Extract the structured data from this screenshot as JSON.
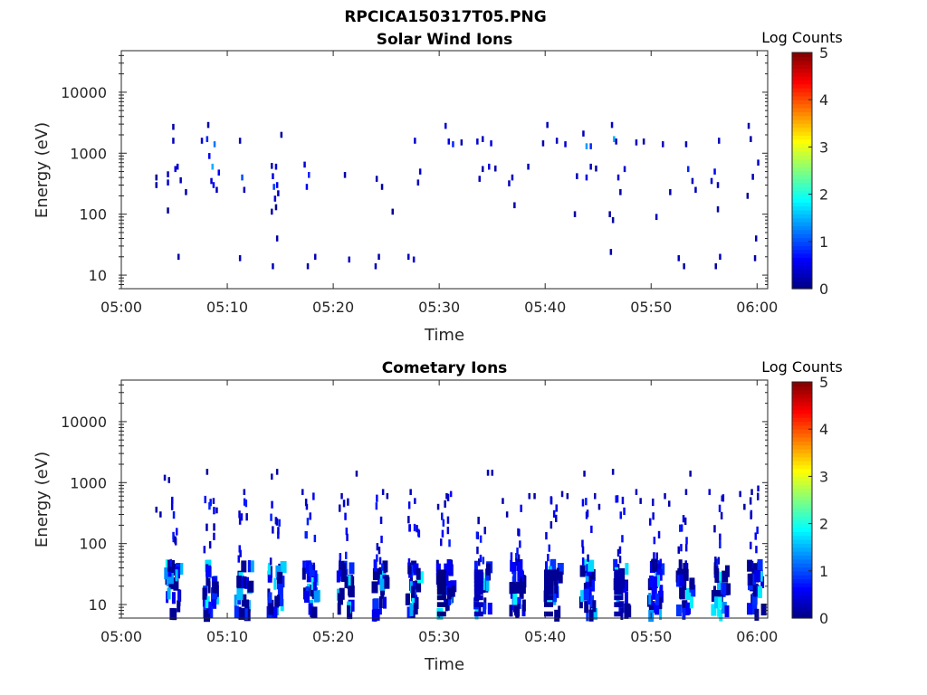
{
  "figure_title": "RPCICA150317T05.PNG",
  "colors": {
    "colormap": [
      "#00007f",
      "#0000ff",
      "#007fff",
      "#00ffff",
      "#7fff7f",
      "#ffff00",
      "#ff7f00",
      "#ff0000",
      "#7f0000"
    ],
    "axis": "#262626"
  },
  "chart_data": [
    {
      "type": "heatmap",
      "title": "Solar Wind Ions",
      "xlabel": "Time",
      "ylabel": "Energy (eV)",
      "x_unit": "minutes after 05:00",
      "xlim": [
        0,
        61
      ],
      "ylim": [
        6,
        48000
      ],
      "y_scale": "log",
      "x_ticks": [
        {
          "value": 0,
          "label": "05:00"
        },
        {
          "value": 10,
          "label": "05:10"
        },
        {
          "value": 20,
          "label": "05:20"
        },
        {
          "value": 30,
          "label": "05:30"
        },
        {
          "value": 40,
          "label": "05:40"
        },
        {
          "value": 50,
          "label": "05:50"
        },
        {
          "value": 60,
          "label": "06:00"
        }
      ],
      "y_ticks": [
        {
          "value": 10,
          "label": "10"
        },
        {
          "value": 100,
          "label": "100"
        },
        {
          "value": 1000,
          "label": "1000"
        },
        {
          "value": 10000,
          "label": "10000"
        }
      ],
      "colorbar": {
        "label": "Log Counts",
        "range": [
          0,
          5
        ],
        "ticks": [
          "0",
          "1",
          "2",
          "3",
          "4",
          "5"
        ]
      },
      "cells": [
        [
          3.2,
          300,
          0.2
        ],
        [
          3.2,
          400,
          0.1
        ],
        [
          4.3,
          450,
          0.3
        ],
        [
          4.3,
          330,
          0.4
        ],
        [
          4.3,
          115,
          0.1
        ],
        [
          4.8,
          2700,
          0.2
        ],
        [
          4.8,
          1600,
          0.3
        ],
        [
          5.0,
          550,
          0.5
        ],
        [
          5.2,
          600,
          0.3
        ],
        [
          5.3,
          20,
          0.2
        ],
        [
          5.5,
          360,
          0.3
        ],
        [
          6.0,
          230,
          0.2
        ],
        [
          7.5,
          1600,
          0.4
        ],
        [
          8.0,
          1700,
          0.8
        ],
        [
          8.1,
          2900,
          0.2
        ],
        [
          8.2,
          900,
          0.6
        ],
        [
          8.4,
          350,
          0.4
        ],
        [
          8.5,
          600,
          1.5
        ],
        [
          8.6,
          300,
          0.6
        ],
        [
          8.7,
          1400,
          1.2
        ],
        [
          8.9,
          250,
          0.3
        ],
        [
          9.1,
          480,
          0.6
        ],
        [
          11.1,
          1600,
          0.3
        ],
        [
          11.3,
          400,
          1.0
        ],
        [
          11.5,
          250,
          0.3
        ],
        [
          11.1,
          19,
          0.3
        ],
        [
          14.1,
          620,
          0.3
        ],
        [
          14.2,
          420,
          0.5
        ],
        [
          14.3,
          280,
          0.9
        ],
        [
          14.4,
          180,
          0.4
        ],
        [
          14.5,
          600,
          0.4
        ],
        [
          14.6,
          300,
          0.6
        ],
        [
          14.7,
          220,
          0.3
        ],
        [
          14.5,
          130,
          0.1
        ],
        [
          14.1,
          110,
          0.2
        ],
        [
          14.2,
          14,
          0.3
        ],
        [
          14.6,
          40,
          0.2
        ],
        [
          15.0,
          2000,
          0.1
        ],
        [
          17.2,
          650,
          0.4
        ],
        [
          17.4,
          280,
          0.6
        ],
        [
          17.6,
          440,
          0.8
        ],
        [
          18.2,
          20,
          0.3
        ],
        [
          17.5,
          14,
          0.2
        ],
        [
          21.0,
          440,
          0.2
        ],
        [
          21.4,
          18,
          0.3
        ],
        [
          24.0,
          380,
          0.2
        ],
        [
          24.5,
          280,
          0.2
        ],
        [
          25.5,
          110,
          0.1
        ],
        [
          23.9,
          14,
          0.3
        ],
        [
          24.2,
          20,
          0.2
        ],
        [
          27.0,
          20,
          0.3
        ],
        [
          27.5,
          18,
          0.4
        ],
        [
          27.6,
          1600,
          0.4
        ],
        [
          27.9,
          330,
          0.3
        ],
        [
          28.1,
          500,
          0.4
        ],
        [
          30.5,
          2800,
          0.4
        ],
        [
          30.8,
          1550,
          0.5
        ],
        [
          31.2,
          1400,
          0.8
        ],
        [
          32.0,
          1500,
          0.2
        ],
        [
          33.5,
          1550,
          0.4
        ],
        [
          34.0,
          1700,
          0.3
        ],
        [
          34.8,
          1450,
          0.5
        ],
        [
          34.0,
          550,
          0.2
        ],
        [
          34.6,
          600,
          0.5
        ],
        [
          33.7,
          380,
          0.3
        ],
        [
          35.2,
          560,
          0.2
        ],
        [
          36.5,
          320,
          0.3
        ],
        [
          36.8,
          400,
          0.3
        ],
        [
          37.0,
          140,
          0.2
        ],
        [
          38.3,
          600,
          0.3
        ],
        [
          39.7,
          1450,
          0.2
        ],
        [
          40.1,
          2900,
          0.3
        ],
        [
          41.0,
          1600,
          0.3
        ],
        [
          41.8,
          1400,
          0.4
        ],
        [
          42.7,
          100,
          0.2
        ],
        [
          42.9,
          420,
          0.3
        ],
        [
          43.5,
          2100,
          0.3
        ],
        [
          43.8,
          1300,
          1.4
        ],
        [
          44.2,
          1300,
          0.8
        ],
        [
          43.8,
          400,
          0.5
        ],
        [
          44.2,
          600,
          0.3
        ],
        [
          44.7,
          560,
          0.2
        ],
        [
          46.2,
          2900,
          0.4
        ],
        [
          46.4,
          1700,
          1.5
        ],
        [
          46.6,
          1550,
          0.3
        ],
        [
          46.8,
          400,
          0.4
        ],
        [
          47.0,
          230,
          0.2
        ],
        [
          47.4,
          550,
          0.4
        ],
        [
          46.0,
          100,
          0.2
        ],
        [
          46.3,
          80,
          0.2
        ],
        [
          46.1,
          24,
          0.2
        ],
        [
          48.5,
          1500,
          0.3
        ],
        [
          49.2,
          1550,
          0.2
        ],
        [
          51.0,
          1400,
          0.3
        ],
        [
          50.4,
          90,
          0.3
        ],
        [
          51.7,
          230,
          0.2
        ],
        [
          52.5,
          19,
          0.3
        ],
        [
          53.0,
          14,
          0.2
        ],
        [
          53.2,
          1400,
          0.3
        ],
        [
          53.4,
          550,
          0.8
        ],
        [
          53.8,
          350,
          0.3
        ],
        [
          54.1,
          250,
          0.3
        ],
        [
          55.6,
          350,
          0.4
        ],
        [
          55.9,
          500,
          0.6
        ],
        [
          56.2,
          300,
          0.3
        ],
        [
          56.3,
          1600,
          0.3
        ],
        [
          56.2,
          120,
          0.2
        ],
        [
          56.0,
          14,
          0.2
        ],
        [
          56.4,
          20,
          0.3
        ],
        [
          59.1,
          2800,
          0.2
        ],
        [
          59.3,
          1700,
          0.2
        ],
        [
          59.5,
          410,
          0.3
        ],
        [
          59.7,
          19,
          0.2
        ],
        [
          59.8,
          40,
          0.2
        ],
        [
          60.0,
          700,
          0.4
        ],
        [
          59.0,
          200,
          0.1
        ]
      ]
    },
    {
      "type": "heatmap",
      "title": "Cometary Ions",
      "xlabel": "Time",
      "ylabel": "Energy (eV)",
      "x_unit": "minutes after 05:00",
      "xlim": [
        0,
        61
      ],
      "ylim": [
        6,
        48000
      ],
      "y_scale": "log",
      "x_ticks": [
        {
          "value": 0,
          "label": "05:00"
        },
        {
          "value": 10,
          "label": "05:10"
        },
        {
          "value": 20,
          "label": "05:20"
        },
        {
          "value": 30,
          "label": "05:30"
        },
        {
          "value": 40,
          "label": "05:40"
        },
        {
          "value": 50,
          "label": "05:50"
        },
        {
          "value": 60,
          "label": "06:00"
        }
      ],
      "y_ticks": [
        {
          "value": 10,
          "label": "10"
        },
        {
          "value": 100,
          "label": "100"
        },
        {
          "value": 1000,
          "label": "1000"
        },
        {
          "value": 10000,
          "label": "10000"
        }
      ],
      "colorbar": {
        "label": "Log Counts",
        "range": [
          0,
          5
        ],
        "ticks": [
          "0",
          "1",
          "2",
          "3",
          "4",
          "5"
        ]
      },
      "bursts": [
        4.6,
        8.1,
        11.2,
        14.3,
        17.6,
        20.9,
        24.2,
        27.4,
        30.3,
        33.8,
        37.1,
        40.4,
        43.8,
        47.0,
        50.2,
        52.9,
        56.2,
        59.6
      ],
      "cells": [
        [
          3.2,
          360,
          0.2
        ],
        [
          3.6,
          300,
          0.2
        ],
        [
          4.0,
          1200,
          0.3
        ],
        [
          4.4,
          1100,
          0.2
        ],
        [
          8.0,
          1500,
          0.1
        ],
        [
          8.6,
          500,
          0.4
        ],
        [
          8.9,
          350,
          0.3
        ],
        [
          11.5,
          700,
          0.3
        ],
        [
          14.1,
          1250,
          0.3
        ],
        [
          14.6,
          1500,
          0.2
        ],
        [
          17.0,
          700,
          0.3
        ],
        [
          17.4,
          400,
          0.4
        ],
        [
          20.7,
          600,
          0.3
        ],
        [
          22.1,
          1400,
          0.2
        ],
        [
          24.6,
          700,
          0.3
        ],
        [
          25.0,
          600,
          0.2
        ],
        [
          27.2,
          700,
          0.3
        ],
        [
          27.6,
          500,
          0.4
        ],
        [
          29.8,
          400,
          0.2
        ],
        [
          30.6,
          600,
          0.3
        ],
        [
          31.0,
          650,
          0.6
        ],
        [
          34.5,
          1450,
          0.3
        ],
        [
          34.9,
          1450,
          0.3
        ],
        [
          35.9,
          500,
          0.2
        ],
        [
          36.3,
          300,
          0.2
        ],
        [
          38.4,
          600,
          0.3
        ],
        [
          38.9,
          600,
          0.2
        ],
        [
          41.5,
          650,
          0.3
        ],
        [
          42.0,
          600,
          0.2
        ],
        [
          43.6,
          1400,
          0.2
        ],
        [
          44.6,
          600,
          0.3
        ],
        [
          45.0,
          400,
          0.2
        ],
        [
          46.3,
          1500,
          0.2
        ],
        [
          48.5,
          700,
          0.3
        ],
        [
          48.9,
          500,
          0.2
        ],
        [
          51.2,
          600,
          0.3
        ],
        [
          51.6,
          450,
          0.2
        ],
        [
          53.2,
          700,
          0.3
        ],
        [
          53.6,
          1400,
          0.2
        ],
        [
          55.4,
          700,
          0.4
        ],
        [
          56.6,
          550,
          0.3
        ],
        [
          58.3,
          650,
          0.3
        ],
        [
          58.7,
          400,
          0.2
        ],
        [
          59.4,
          700,
          0.2
        ],
        [
          60.0,
          800,
          0.4
        ]
      ]
    }
  ]
}
